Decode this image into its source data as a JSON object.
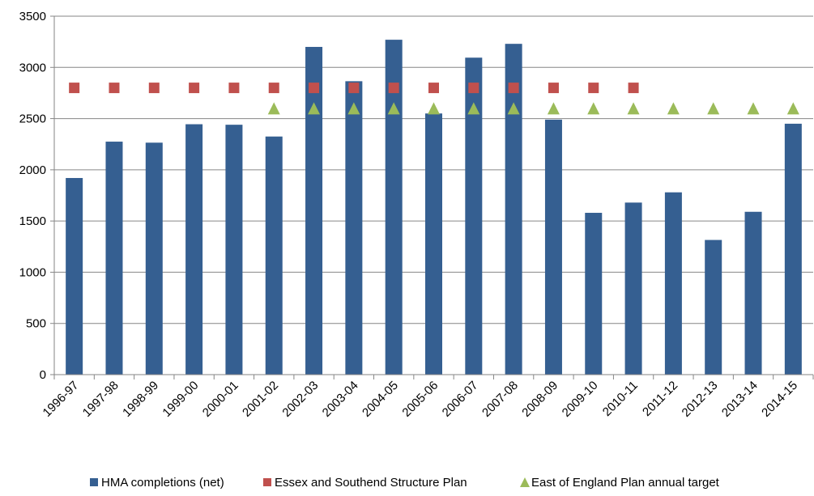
{
  "chart_data": {
    "type": "bar",
    "categories": [
      "1996-97",
      "1997-98",
      "1998-99",
      "1999-00",
      "2000-01",
      "2001-02",
      "2002-03",
      "2003-04",
      "2004-05",
      "2005-06",
      "2006-07",
      "2007-08",
      "2008-09",
      "2009-10",
      "2010-11",
      "2011-12",
      "2012-13",
      "2013-14",
      "2014-15"
    ],
    "ylim": [
      0,
      3500
    ],
    "yticks": [
      0,
      500,
      1000,
      1500,
      2000,
      2500,
      3000,
      3500
    ],
    "grid": true,
    "legend_position": "bottom",
    "series": [
      {
        "name": "HMA completions (net)",
        "kind": "bar",
        "color": "#355F91",
        "values": [
          1920,
          2275,
          2265,
          2445,
          2440,
          2325,
          3200,
          2865,
          3270,
          2550,
          3095,
          3230,
          2490,
          1580,
          1680,
          1780,
          1315,
          1590,
          2450
        ]
      },
      {
        "name": "Essex and Southend Structure Plan",
        "kind": "marker",
        "marker": "square",
        "color": "#C0504D",
        "values": [
          2800,
          2800,
          2800,
          2800,
          2800,
          2800,
          2800,
          2800,
          2800,
          2800,
          2800,
          2800,
          2800,
          2800,
          2800,
          null,
          null,
          null,
          null
        ]
      },
      {
        "name": "East of England Plan annual target",
        "kind": "marker",
        "marker": "triangle",
        "color": "#9BBB59",
        "values": [
          null,
          null,
          null,
          null,
          null,
          2600,
          2600,
          2600,
          2600,
          2600,
          2600,
          2600,
          2600,
          2600,
          2600,
          2600,
          2600,
          2600,
          2600
        ]
      }
    ]
  }
}
